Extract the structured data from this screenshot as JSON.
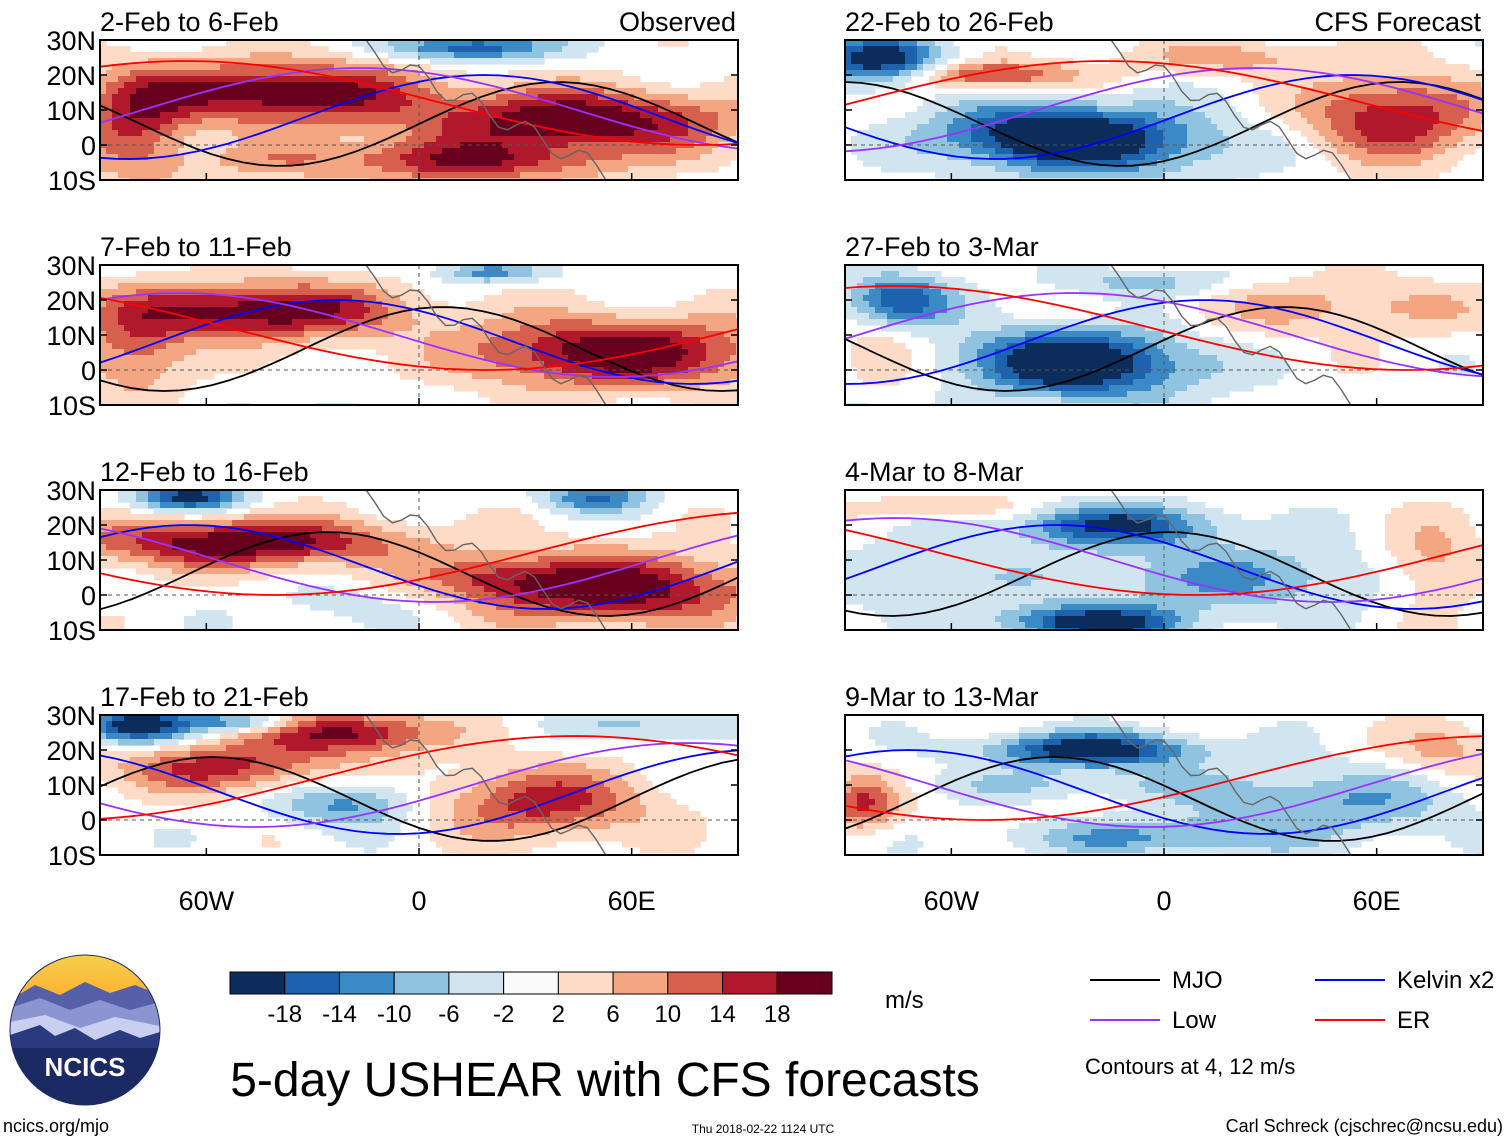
{
  "figure": {
    "title": "5-day USHEAR with CFS forecasts",
    "timestamp": "Thu 2018-02-22 1124 UTC",
    "site": "ncics.org/mjo",
    "credit": "Carl Schreck (cjschrec@ncsu.edu)",
    "logo_text": "NCICS"
  },
  "chart_data": {
    "type": "heatmap",
    "variable": "USHEAR anomaly",
    "units": "m/s",
    "xlim": [
      -90,
      90
    ],
    "ylim": [
      -10,
      30
    ],
    "yticks": [
      {
        "value": 30,
        "label": "30N"
      },
      {
        "value": 20,
        "label": "20N"
      },
      {
        "value": 10,
        "label": "10N"
      },
      {
        "value": 0,
        "label": "0"
      },
      {
        "value": -10,
        "label": "10S"
      }
    ],
    "xticks": [
      {
        "value": -60,
        "label": "60W"
      },
      {
        "value": 0,
        "label": "0"
      },
      {
        "value": 60,
        "label": "60E"
      }
    ],
    "columns": [
      {
        "label": "Observed"
      },
      {
        "label": "CFS Forecast"
      }
    ],
    "panels": [
      {
        "period": "2-Feb to 6-Feb",
        "column": 0,
        "row": 0,
        "blobs": [
          [
            -40,
            15,
            40,
            9,
            22
          ],
          [
            45,
            7,
            45,
            9,
            22
          ],
          [
            0,
            -5,
            50,
            6,
            18
          ],
          [
            -80,
            5,
            15,
            15,
            14
          ],
          [
            15,
            28,
            22,
            4,
            -18
          ],
          [
            -15,
            -6,
            20,
            5,
            -6
          ]
        ]
      },
      {
        "period": "7-Feb to 11-Feb",
        "column": 0,
        "row": 1,
        "blobs": [
          [
            -45,
            17,
            40,
            8,
            22
          ],
          [
            55,
            5,
            45,
            10,
            22
          ],
          [
            -80,
            5,
            15,
            12,
            12
          ],
          [
            20,
            28,
            15,
            3,
            -12
          ],
          [
            5,
            5,
            20,
            10,
            -2
          ]
        ]
      },
      {
        "period": "12-Feb to 16-Feb",
        "column": 0,
        "row": 2,
        "blobs": [
          [
            -50,
            15,
            45,
            7,
            22
          ],
          [
            55,
            2,
            40,
            10,
            22
          ],
          [
            -65,
            28,
            15,
            4,
            -20
          ],
          [
            50,
            28,
            15,
            4,
            -14
          ],
          [
            -20,
            -3,
            25,
            6,
            -4
          ],
          [
            20,
            5,
            20,
            6,
            8
          ]
        ]
      },
      {
        "period": "17-Feb to 21-Feb",
        "column": 0,
        "row": 3,
        "blobs": [
          [
            -55,
            15,
            30,
            7,
            16
          ],
          [
            -20,
            25,
            25,
            6,
            20
          ],
          [
            35,
            5,
            30,
            10,
            16
          ],
          [
            -80,
            27,
            15,
            5,
            -22
          ],
          [
            -50,
            28,
            15,
            3,
            -14
          ],
          [
            -20,
            5,
            20,
            7,
            -12
          ],
          [
            70,
            27,
            25,
            4,
            -8
          ]
        ]
      },
      {
        "period": "22-Feb to 26-Feb",
        "column": 1,
        "row": 0,
        "blobs": [
          [
            -80,
            24,
            18,
            7,
            -22
          ],
          [
            -35,
            3,
            30,
            9,
            -20
          ],
          [
            -10,
            0,
            35,
            10,
            -12
          ],
          [
            -50,
            20,
            25,
            4,
            16
          ],
          [
            65,
            8,
            25,
            12,
            18
          ],
          [
            20,
            25,
            30,
            5,
            8
          ]
        ]
      },
      {
        "period": "27-Feb to 3-Mar",
        "column": 1,
        "row": 1,
        "blobs": [
          [
            -75,
            20,
            15,
            7,
            -18
          ],
          [
            -30,
            3,
            30,
            9,
            -18
          ],
          [
            -15,
            0,
            30,
            10,
            -10
          ],
          [
            50,
            18,
            40,
            8,
            8
          ],
          [
            -5,
            25,
            25,
            4,
            -8
          ],
          [
            -80,
            3,
            12,
            8,
            8
          ]
        ]
      },
      {
        "period": "4-Mar to 8-Mar",
        "column": 1,
        "row": 2,
        "blobs": [
          [
            -15,
            20,
            30,
            6,
            -18
          ],
          [
            -20,
            -8,
            25,
            5,
            -22
          ],
          [
            20,
            5,
            50,
            10,
            -10
          ],
          [
            -70,
            5,
            25,
            10,
            -6
          ],
          [
            75,
            8,
            15,
            12,
            10
          ],
          [
            -60,
            25,
            25,
            4,
            6
          ]
        ]
      },
      {
        "period": "9-Mar to 13-Mar",
        "column": 1,
        "row": 3,
        "blobs": [
          [
            -20,
            20,
            30,
            5,
            -22
          ],
          [
            -5,
            -5,
            40,
            5,
            -10
          ],
          [
            45,
            5,
            40,
            10,
            -10
          ],
          [
            -85,
            5,
            10,
            8,
            14
          ],
          [
            80,
            20,
            15,
            8,
            8
          ],
          [
            -30,
            10,
            40,
            4,
            -6
          ]
        ]
      }
    ],
    "colorbar": {
      "colors": [
        "#0c2c5c",
        "#1d62ac",
        "#3b8ac6",
        "#90c3df",
        "#d1e5f0",
        "#fafafa",
        "#fddbc7",
        "#f4a582",
        "#d6604d",
        "#b2182b",
        "#67001f"
      ],
      "ticks": [
        "-18",
        "-14",
        "-10",
        "-6",
        "-2",
        "2",
        "6",
        "10",
        "14",
        "18"
      ],
      "units": "m/s"
    },
    "legend": {
      "items": [
        {
          "name": "MJO",
          "color": "#000000"
        },
        {
          "name": "Kelvin x2",
          "color": "#0000ff"
        },
        {
          "name": "Low",
          "color": "#9933ff"
        },
        {
          "name": "ER",
          "color": "#ff0000"
        }
      ],
      "note": "Contours at 4, 12 m/s"
    }
  }
}
